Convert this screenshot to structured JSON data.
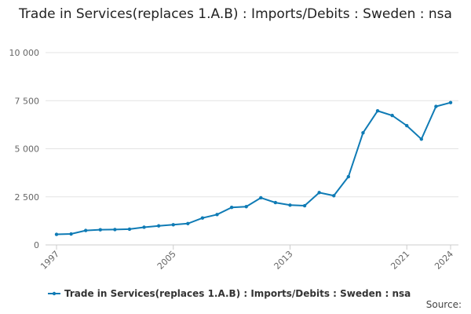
{
  "chart_data": {
    "type": "line",
    "title": "Trade in Services(replaces 1.A.B) : Imports/Debits : Sweden : nsa",
    "x": [
      1997,
      1998,
      1999,
      2000,
      2001,
      2002,
      2003,
      2004,
      2005,
      2006,
      2007,
      2008,
      2009,
      2010,
      2011,
      2012,
      2013,
      2014,
      2015,
      2016,
      2017,
      2018,
      2019,
      2020,
      2021,
      2022,
      2023,
      2024
    ],
    "series": [
      {
        "name": "Trade in Services(replaces 1.A.B) : Imports/Debits : Sweden : nsa",
        "color": "#0f7bb5",
        "values": [
          550,
          570,
          750,
          790,
          800,
          820,
          920,
          990,
          1050,
          1110,
          1400,
          1580,
          1950,
          1990,
          2450,
          2200,
          2070,
          2040,
          2720,
          2560,
          3550,
          5830,
          6970,
          6730,
          6200,
          5500,
          7200,
          7400
        ]
      }
    ],
    "xlim": [
      1997,
      2024
    ],
    "xticks": [
      1997,
      2005,
      2013,
      2021,
      2024
    ],
    "ylim": [
      0,
      10000
    ],
    "yticks": [
      0,
      {
        "value": 2500,
        "label": "2 500"
      },
      {
        "value": 5000,
        "label": "5 000"
      },
      {
        "value": 7500,
        "label": "7 500"
      },
      {
        "value": 10000,
        "label": "10 000"
      }
    ],
    "grid": true,
    "source": "Source:"
  }
}
